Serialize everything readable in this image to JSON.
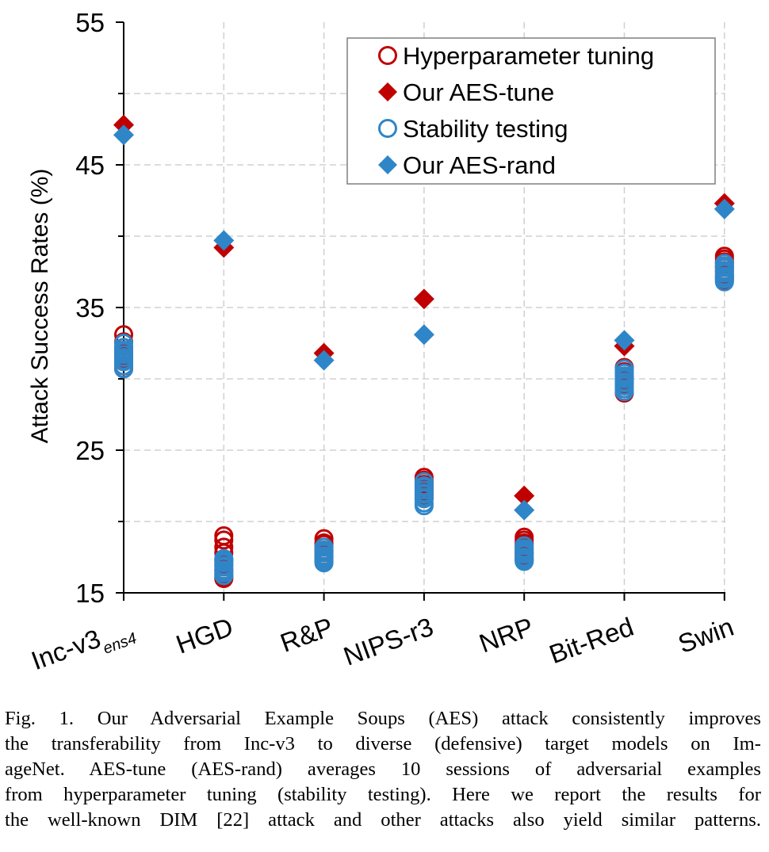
{
  "chart_data": {
    "type": "scatter",
    "title": "",
    "xlabel": "",
    "ylabel": "Attack Success Rates (%)",
    "ylim": [
      15,
      55
    ],
    "yticks": [
      15,
      25,
      35,
      45,
      55
    ],
    "grid": true,
    "legend_position": "top-right",
    "categories": [
      {
        "main": "Inc-v3",
        "sub": "ens4"
      },
      {
        "main": "HGD",
        "sub": ""
      },
      {
        "main": "R&P",
        "sub": ""
      },
      {
        "main": "NIPS-r3",
        "sub": ""
      },
      {
        "main": "NRP",
        "sub": ""
      },
      {
        "main": "Bit-Red",
        "sub": ""
      },
      {
        "main": "Swin",
        "sub": ""
      }
    ],
    "series": [
      {
        "name": "Hyperparameter tuning",
        "marker": "circle-open",
        "color": "#c00000",
        "values": [
          [
            33.1,
            32.6,
            32.2,
            31.8,
            31.4,
            31.2,
            30.9,
            30.7,
            31.6,
            32.0
          ],
          [
            19.0,
            18.7,
            17.8,
            17.3,
            16.6,
            16.3,
            16.1,
            16.0,
            17.0,
            18.2
          ],
          [
            18.8,
            18.5,
            18.2,
            18.0,
            17.8,
            17.6,
            17.5,
            17.3,
            17.9,
            18.4
          ],
          [
            23.1,
            22.9,
            22.6,
            22.3,
            22.0,
            21.8,
            21.6,
            22.4,
            22.8,
            22.1
          ],
          [
            18.9,
            18.7,
            18.4,
            18.2,
            18.0,
            17.8,
            17.6,
            17.4,
            17.3,
            18.5
          ],
          [
            30.8,
            30.5,
            30.2,
            29.9,
            29.6,
            29.3,
            29.1,
            29.0,
            30.0,
            29.8
          ],
          [
            38.6,
            38.4,
            38.1,
            37.9,
            37.6,
            37.3,
            37.1,
            36.9,
            37.8,
            38.2
          ]
        ]
      },
      {
        "name": "Our AES-tune",
        "marker": "diamond",
        "color": "#c00000",
        "values": [
          47.8,
          39.2,
          31.8,
          35.6,
          21.8,
          32.3,
          42.3
        ]
      },
      {
        "name": "Stability testing",
        "marker": "circle-open",
        "color": "#2e86c8",
        "values": [
          [
            32.5,
            32.2,
            31.9,
            31.5,
            31.2,
            30.9,
            30.7,
            31.7,
            32.0,
            31.3
          ],
          [
            17.4,
            17.1,
            16.8,
            16.6,
            16.4,
            16.2,
            17.2,
            16.9,
            17.3,
            16.5
          ],
          [
            18.2,
            17.9,
            17.6,
            17.4,
            17.2,
            17.1,
            17.8,
            17.5,
            18.0,
            17.3
          ],
          [
            22.8,
            22.5,
            22.2,
            21.9,
            21.6,
            21.3,
            21.1,
            22.4,
            22.0,
            21.7
          ],
          [
            18.3,
            18.0,
            17.8,
            17.5,
            17.3,
            17.2,
            17.7,
            18.1,
            17.9,
            17.4
          ],
          [
            30.7,
            30.4,
            30.1,
            29.8,
            29.5,
            29.3,
            29.1,
            30.0,
            29.7,
            30.2
          ],
          [
            38.1,
            37.8,
            37.5,
            37.2,
            37.0,
            36.8,
            37.6,
            37.4,
            37.9,
            37.1
          ]
        ]
      },
      {
        "name": "Our AES-rand",
        "marker": "diamond",
        "color": "#2e86c8",
        "values": [
          47.1,
          39.7,
          31.3,
          33.1,
          20.8,
          32.7,
          41.9
        ]
      }
    ]
  },
  "caption": {
    "lines": [
      "Fig. 1.  Our Adversarial Example Soups (AES) attack consistently improves",
      "the transferability from Inc-v3 to diverse (defensive) target models on Im-",
      "ageNet. AES-tune (AES-rand) averages 10 sessions of adversarial examples",
      "from hyperparameter tuning (stability testing). Here we report the results for",
      "the well-known DIM [22] attack and other attacks also yield similar patterns."
    ]
  }
}
